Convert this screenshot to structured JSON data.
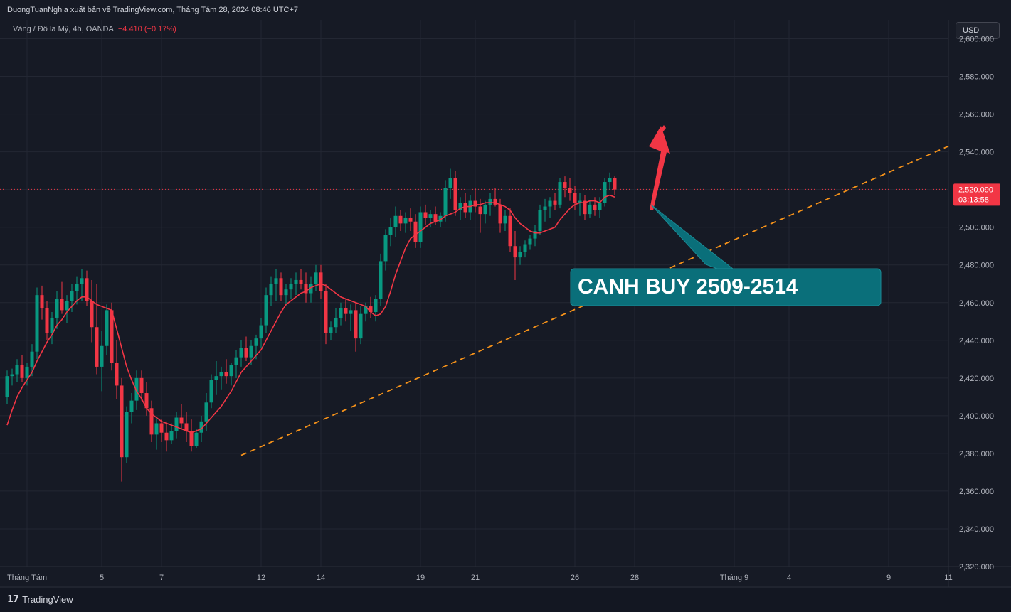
{
  "header": {
    "publisher_text": "DuongTuanNghia xuất bản về TradingView.com, Tháng Tám 28, 2024 08:46 UTC+7",
    "symbol_text": "Vàng / Đô la Mỹ, 4h, OANDA",
    "change_text": "−4.410 (−0.17%)",
    "currency_label": "USD"
  },
  "footer": {
    "logo_icon": "tradingview-logo-icon",
    "logo_text": "TradingView"
  },
  "colors": {
    "background": "#161a25",
    "grid": "#232733",
    "up_candle": "#089981",
    "down_candle": "#f23645",
    "moving_average": "#f23645",
    "trendline": "#f7931a",
    "arrow": "#f23645",
    "callout": "#0a6f7a",
    "axis_text": "#b2b5be"
  },
  "chart_data": {
    "type": "candlestick",
    "instrument": "Vàng / Đô la Mỹ",
    "timeframe": "4h",
    "source": "OANDA",
    "ylim": [
      2320,
      2610
    ],
    "yticks": [
      2320,
      2340,
      2360,
      2380,
      2400,
      2420,
      2440,
      2460,
      2480,
      2500,
      2520,
      2540,
      2560,
      2580,
      2600
    ],
    "ytick_labels": [
      "2,320.000",
      "2,340.000",
      "2,360.000",
      "2,380.000",
      "2,400.000",
      "2,420.000",
      "2,440.000",
      "2,460.000",
      "2,480.000",
      "2,500.000",
      "2,520.000",
      "2,540.000",
      "2,560.000",
      "2,580.000",
      "2,600.000"
    ],
    "x_ticks": [
      {
        "bar": 4,
        "label": "Tháng Tám"
      },
      {
        "bar": 19,
        "label": "5"
      },
      {
        "bar": 31,
        "label": "7"
      },
      {
        "bar": 51,
        "label": "12"
      },
      {
        "bar": 63,
        "label": "14"
      },
      {
        "bar": 83,
        "label": "19"
      },
      {
        "bar": 94,
        "label": "21"
      },
      {
        "bar": 114,
        "label": "26"
      },
      {
        "bar": 126,
        "label": "28"
      },
      {
        "bar": 146,
        "label": "Tháng 9"
      },
      {
        "bar": 157,
        "label": "4"
      },
      {
        "bar": 177,
        "label": "9"
      },
      {
        "bar": 189,
        "label": "11"
      }
    ],
    "grid": true,
    "candles": [
      [
        2410,
        2424,
        2406,
        2421
      ],
      [
        2421,
        2425,
        2416,
        2422
      ],
      [
        2422,
        2430,
        2418,
        2427
      ],
      [
        2427,
        2432,
        2418,
        2420
      ],
      [
        2420,
        2428,
        2416,
        2426
      ],
      [
        2426,
        2438,
        2421,
        2434
      ],
      [
        2434,
        2468,
        2430,
        2464
      ],
      [
        2464,
        2469,
        2451,
        2457
      ],
      [
        2457,
        2461,
        2440,
        2444
      ],
      [
        2444,
        2455,
        2438,
        2452
      ],
      [
        2452,
        2466,
        2446,
        2462
      ],
      [
        2462,
        2471,
        2454,
        2456
      ],
      [
        2456,
        2464,
        2449,
        2461
      ],
      [
        2461,
        2470,
        2455,
        2466
      ],
      [
        2466,
        2474,
        2459,
        2470
      ],
      [
        2470,
        2478,
        2461,
        2473
      ],
      [
        2473,
        2477,
        2458,
        2461
      ],
      [
        2461,
        2472,
        2439,
        2447
      ],
      [
        2447,
        2470,
        2422,
        2426
      ],
      [
        2426,
        2445,
        2413,
        2437
      ],
      [
        2437,
        2459,
        2432,
        2456
      ],
      [
        2456,
        2460,
        2424,
        2428
      ],
      [
        2428,
        2440,
        2409,
        2416
      ],
      [
        2416,
        2420,
        2365,
        2378
      ],
      [
        2378,
        2405,
        2375,
        2402
      ],
      [
        2402,
        2412,
        2396,
        2408
      ],
      [
        2408,
        2424,
        2403,
        2420
      ],
      [
        2420,
        2424,
        2408,
        2412
      ],
      [
        2412,
        2418,
        2400,
        2404
      ],
      [
        2404,
        2408,
        2386,
        2390
      ],
      [
        2390,
        2399,
        2382,
        2396
      ],
      [
        2396,
        2398,
        2386,
        2391
      ],
      [
        2391,
        2397,
        2381,
        2387
      ],
      [
        2387,
        2396,
        2385,
        2392
      ],
      [
        2392,
        2402,
        2388,
        2399
      ],
      [
        2399,
        2406,
        2393,
        2396
      ],
      [
        2396,
        2402,
        2386,
        2392
      ],
      [
        2392,
        2398,
        2381,
        2384
      ],
      [
        2384,
        2393,
        2383,
        2391
      ],
      [
        2391,
        2400,
        2386,
        2397
      ],
      [
        2397,
        2412,
        2392,
        2407
      ],
      [
        2407,
        2422,
        2404,
        2419
      ],
      [
        2419,
        2429,
        2411,
        2421
      ],
      [
        2421,
        2426,
        2414,
        2423
      ],
      [
        2423,
        2430,
        2417,
        2421
      ],
      [
        2421,
        2428,
        2416,
        2427
      ],
      [
        2427,
        2435,
        2420,
        2431
      ],
      [
        2431,
        2440,
        2426,
        2436
      ],
      [
        2436,
        2442,
        2429,
        2431
      ],
      [
        2431,
        2440,
        2427,
        2437
      ],
      [
        2437,
        2443,
        2430,
        2441
      ],
      [
        2441,
        2452,
        2436,
        2448
      ],
      [
        2448,
        2468,
        2444,
        2464
      ],
      [
        2464,
        2474,
        2458,
        2470
      ],
      [
        2470,
        2478,
        2461,
        2473
      ],
      [
        2473,
        2476,
        2461,
        2464
      ],
      [
        2464,
        2470,
        2458,
        2467
      ],
      [
        2467,
        2473,
        2462,
        2470
      ],
      [
        2470,
        2476,
        2464,
        2472
      ],
      [
        2472,
        2478,
        2467,
        2470
      ],
      [
        2470,
        2476,
        2460,
        2465
      ],
      [
        2465,
        2474,
        2460,
        2470
      ],
      [
        2470,
        2480,
        2466,
        2476
      ],
      [
        2476,
        2480,
        2462,
        2466
      ],
      [
        2466,
        2470,
        2438,
        2444
      ],
      [
        2444,
        2450,
        2440,
        2447
      ],
      [
        2447,
        2457,
        2444,
        2452
      ],
      [
        2452,
        2460,
        2448,
        2457
      ],
      [
        2457,
        2462,
        2450,
        2454
      ],
      [
        2454,
        2459,
        2445,
        2456
      ],
      [
        2456,
        2460,
        2434,
        2441
      ],
      [
        2441,
        2458,
        2438,
        2454
      ],
      [
        2454,
        2460,
        2450,
        2458
      ],
      [
        2458,
        2463,
        2452,
        2455
      ],
      [
        2455,
        2464,
        2450,
        2462
      ],
      [
        2462,
        2486,
        2458,
        2482
      ],
      [
        2482,
        2499,
        2477,
        2496
      ],
      [
        2496,
        2505,
        2490,
        2500
      ],
      [
        2500,
        2511,
        2495,
        2506
      ],
      [
        2506,
        2509,
        2498,
        2502
      ],
      [
        2502,
        2508,
        2497,
        2505
      ],
      [
        2505,
        2510,
        2498,
        2503
      ],
      [
        2503,
        2507,
        2489,
        2492
      ],
      [
        2492,
        2511,
        2489,
        2508
      ],
      [
        2508,
        2512,
        2501,
        2505
      ],
      [
        2505,
        2509,
        2500,
        2507
      ],
      [
        2507,
        2511,
        2501,
        2503
      ],
      [
        2503,
        2508,
        2500,
        2506
      ],
      [
        2506,
        2525,
        2503,
        2521
      ],
      [
        2521,
        2531,
        2515,
        2526
      ],
      [
        2526,
        2530,
        2506,
        2509
      ],
      [
        2509,
        2516,
        2504,
        2513
      ],
      [
        2513,
        2518,
        2505,
        2508
      ],
      [
        2508,
        2517,
        2504,
        2514
      ],
      [
        2514,
        2521,
        2508,
        2511
      ],
      [
        2511,
        2515,
        2497,
        2507
      ],
      [
        2507,
        2514,
        2502,
        2512
      ],
      [
        2512,
        2518,
        2506,
        2515
      ],
      [
        2515,
        2521,
        2511,
        2512
      ],
      [
        2512,
        2515,
        2497,
        2502
      ],
      [
        2502,
        2509,
        2498,
        2506
      ],
      [
        2506,
        2510,
        2487,
        2490
      ],
      [
        2490,
        2498,
        2472,
        2484
      ],
      [
        2484,
        2490,
        2480,
        2487
      ],
      [
        2487,
        2493,
        2484,
        2491
      ],
      [
        2491,
        2496,
        2488,
        2494
      ],
      [
        2494,
        2501,
        2490,
        2498
      ],
      [
        2498,
        2512,
        2496,
        2509
      ],
      [
        2509,
        2515,
        2503,
        2511
      ],
      [
        2511,
        2516,
        2505,
        2514
      ],
      [
        2514,
        2518,
        2509,
        2512
      ],
      [
        2512,
        2526,
        2510,
        2524
      ],
      [
        2524,
        2527,
        2516,
        2521
      ],
      [
        2521,
        2526,
        2514,
        2518
      ],
      [
        2518,
        2522,
        2509,
        2513
      ],
      [
        2513,
        2518,
        2506,
        2514
      ],
      [
        2514,
        2517,
        2504,
        2507
      ],
      [
        2507,
        2514,
        2505,
        2512
      ],
      [
        2512,
        2516,
        2506,
        2509
      ],
      [
        2509,
        2516,
        2505,
        2513
      ],
      [
        2513,
        2526,
        2511,
        2524
      ],
      [
        2524,
        2529,
        2520,
        2526
      ],
      [
        2526,
        2527,
        2517,
        2520
      ]
    ],
    "moving_average": {
      "name": "MA",
      "values": [
        2395,
        2403,
        2410,
        2415,
        2419,
        2423,
        2429,
        2434,
        2439,
        2443,
        2448,
        2451,
        2455,
        2458,
        2461,
        2463,
        2463,
        2461,
        2459,
        2458,
        2457,
        2456,
        2446,
        2436,
        2426,
        2419,
        2413,
        2409,
        2404,
        2401,
        2399,
        2397,
        2396,
        2395,
        2394,
        2393,
        2392,
        2391,
        2392,
        2393,
        2396,
        2399,
        2402,
        2405,
        2409,
        2413,
        2418,
        2423,
        2426,
        2429,
        2432,
        2435,
        2440,
        2445,
        2450,
        2455,
        2459,
        2461,
        2463,
        2465,
        2466,
        2468,
        2469,
        2470,
        2469,
        2467,
        2465,
        2463,
        2462,
        2461,
        2460,
        2459,
        2458,
        2455,
        2453,
        2454,
        2458,
        2466,
        2475,
        2482,
        2489,
        2494,
        2496,
        2498,
        2500,
        2502,
        2503,
        2504,
        2506,
        2507,
        2508,
        2510,
        2511,
        2511,
        2512,
        2512,
        2513,
        2513,
        2513,
        2512,
        2511,
        2509,
        2505,
        2502,
        2500,
        2498,
        2497,
        2497,
        2498,
        2499,
        2500,
        2504,
        2507,
        2510,
        2512,
        2513,
        2513,
        2514,
        2514,
        2513,
        2516,
        2517,
        2516
      ]
    },
    "trendline": {
      "points": [
        [
          47,
          2379
        ],
        [
          189,
          2543
        ]
      ],
      "style": "dashed"
    },
    "last_price": 2520.09,
    "price_label": "2,520.090",
    "countdown_label": "03:13:58",
    "annotations": {
      "callout_text": "CANH BUY 2509-2514",
      "arrow_direction": "up"
    }
  }
}
